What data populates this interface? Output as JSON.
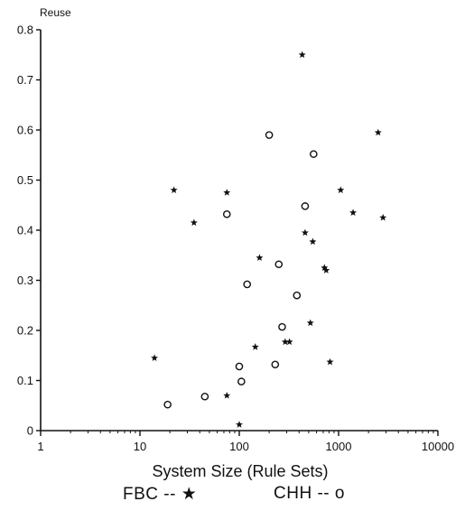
{
  "chart_data": {
    "type": "scatter",
    "xscale": "log",
    "xlim": [
      1,
      10000
    ],
    "ylim": [
      0,
      0.8
    ],
    "xticks": [
      1,
      10,
      100,
      1000,
      10000
    ],
    "xtick_labels": [
      "1",
      "10",
      "100",
      "1000",
      "10000"
    ],
    "yticks": [
      0,
      0.1,
      0.2,
      0.3,
      0.4,
      0.5,
      0.6,
      0.7,
      0.8
    ],
    "ytick_labels": [
      "0",
      "0.1",
      "0.2",
      "0.3",
      "0.4",
      "0.5",
      "0.6",
      "0.7",
      "0.8"
    ],
    "xlabel": "System Size (Rule Sets)",
    "ylabel": "Reuse",
    "grid": false,
    "series": [
      {
        "name": "FBC",
        "marker": "star",
        "legend_text": "FBC --",
        "legend_symbol": "★",
        "points": [
          [
            14,
            0.145
          ],
          [
            22,
            0.48
          ],
          [
            35,
            0.415
          ],
          [
            75,
            0.475
          ],
          [
            75,
            0.07
          ],
          [
            100,
            0.012
          ],
          [
            145,
            0.167
          ],
          [
            160,
            0.345
          ],
          [
            290,
            0.177
          ],
          [
            320,
            0.177
          ],
          [
            430,
            0.75
          ],
          [
            460,
            0.395
          ],
          [
            520,
            0.215
          ],
          [
            550,
            0.377
          ],
          [
            720,
            0.325
          ],
          [
            750,
            0.32
          ],
          [
            820,
            0.137
          ],
          [
            1050,
            0.48
          ],
          [
            1400,
            0.435
          ],
          [
            2500,
            0.595
          ],
          [
            2800,
            0.425
          ]
        ]
      },
      {
        "name": "CHH",
        "marker": "circle",
        "legend_text": "CHH --",
        "legend_symbol": "o",
        "points": [
          [
            19,
            0.052
          ],
          [
            45,
            0.068
          ],
          [
            75,
            0.432
          ],
          [
            100,
            0.128
          ],
          [
            105,
            0.098
          ],
          [
            120,
            0.292
          ],
          [
            200,
            0.59
          ],
          [
            230,
            0.132
          ],
          [
            250,
            0.332
          ],
          [
            270,
            0.207
          ],
          [
            380,
            0.27
          ],
          [
            460,
            0.448
          ],
          [
            560,
            0.552
          ]
        ]
      }
    ]
  }
}
